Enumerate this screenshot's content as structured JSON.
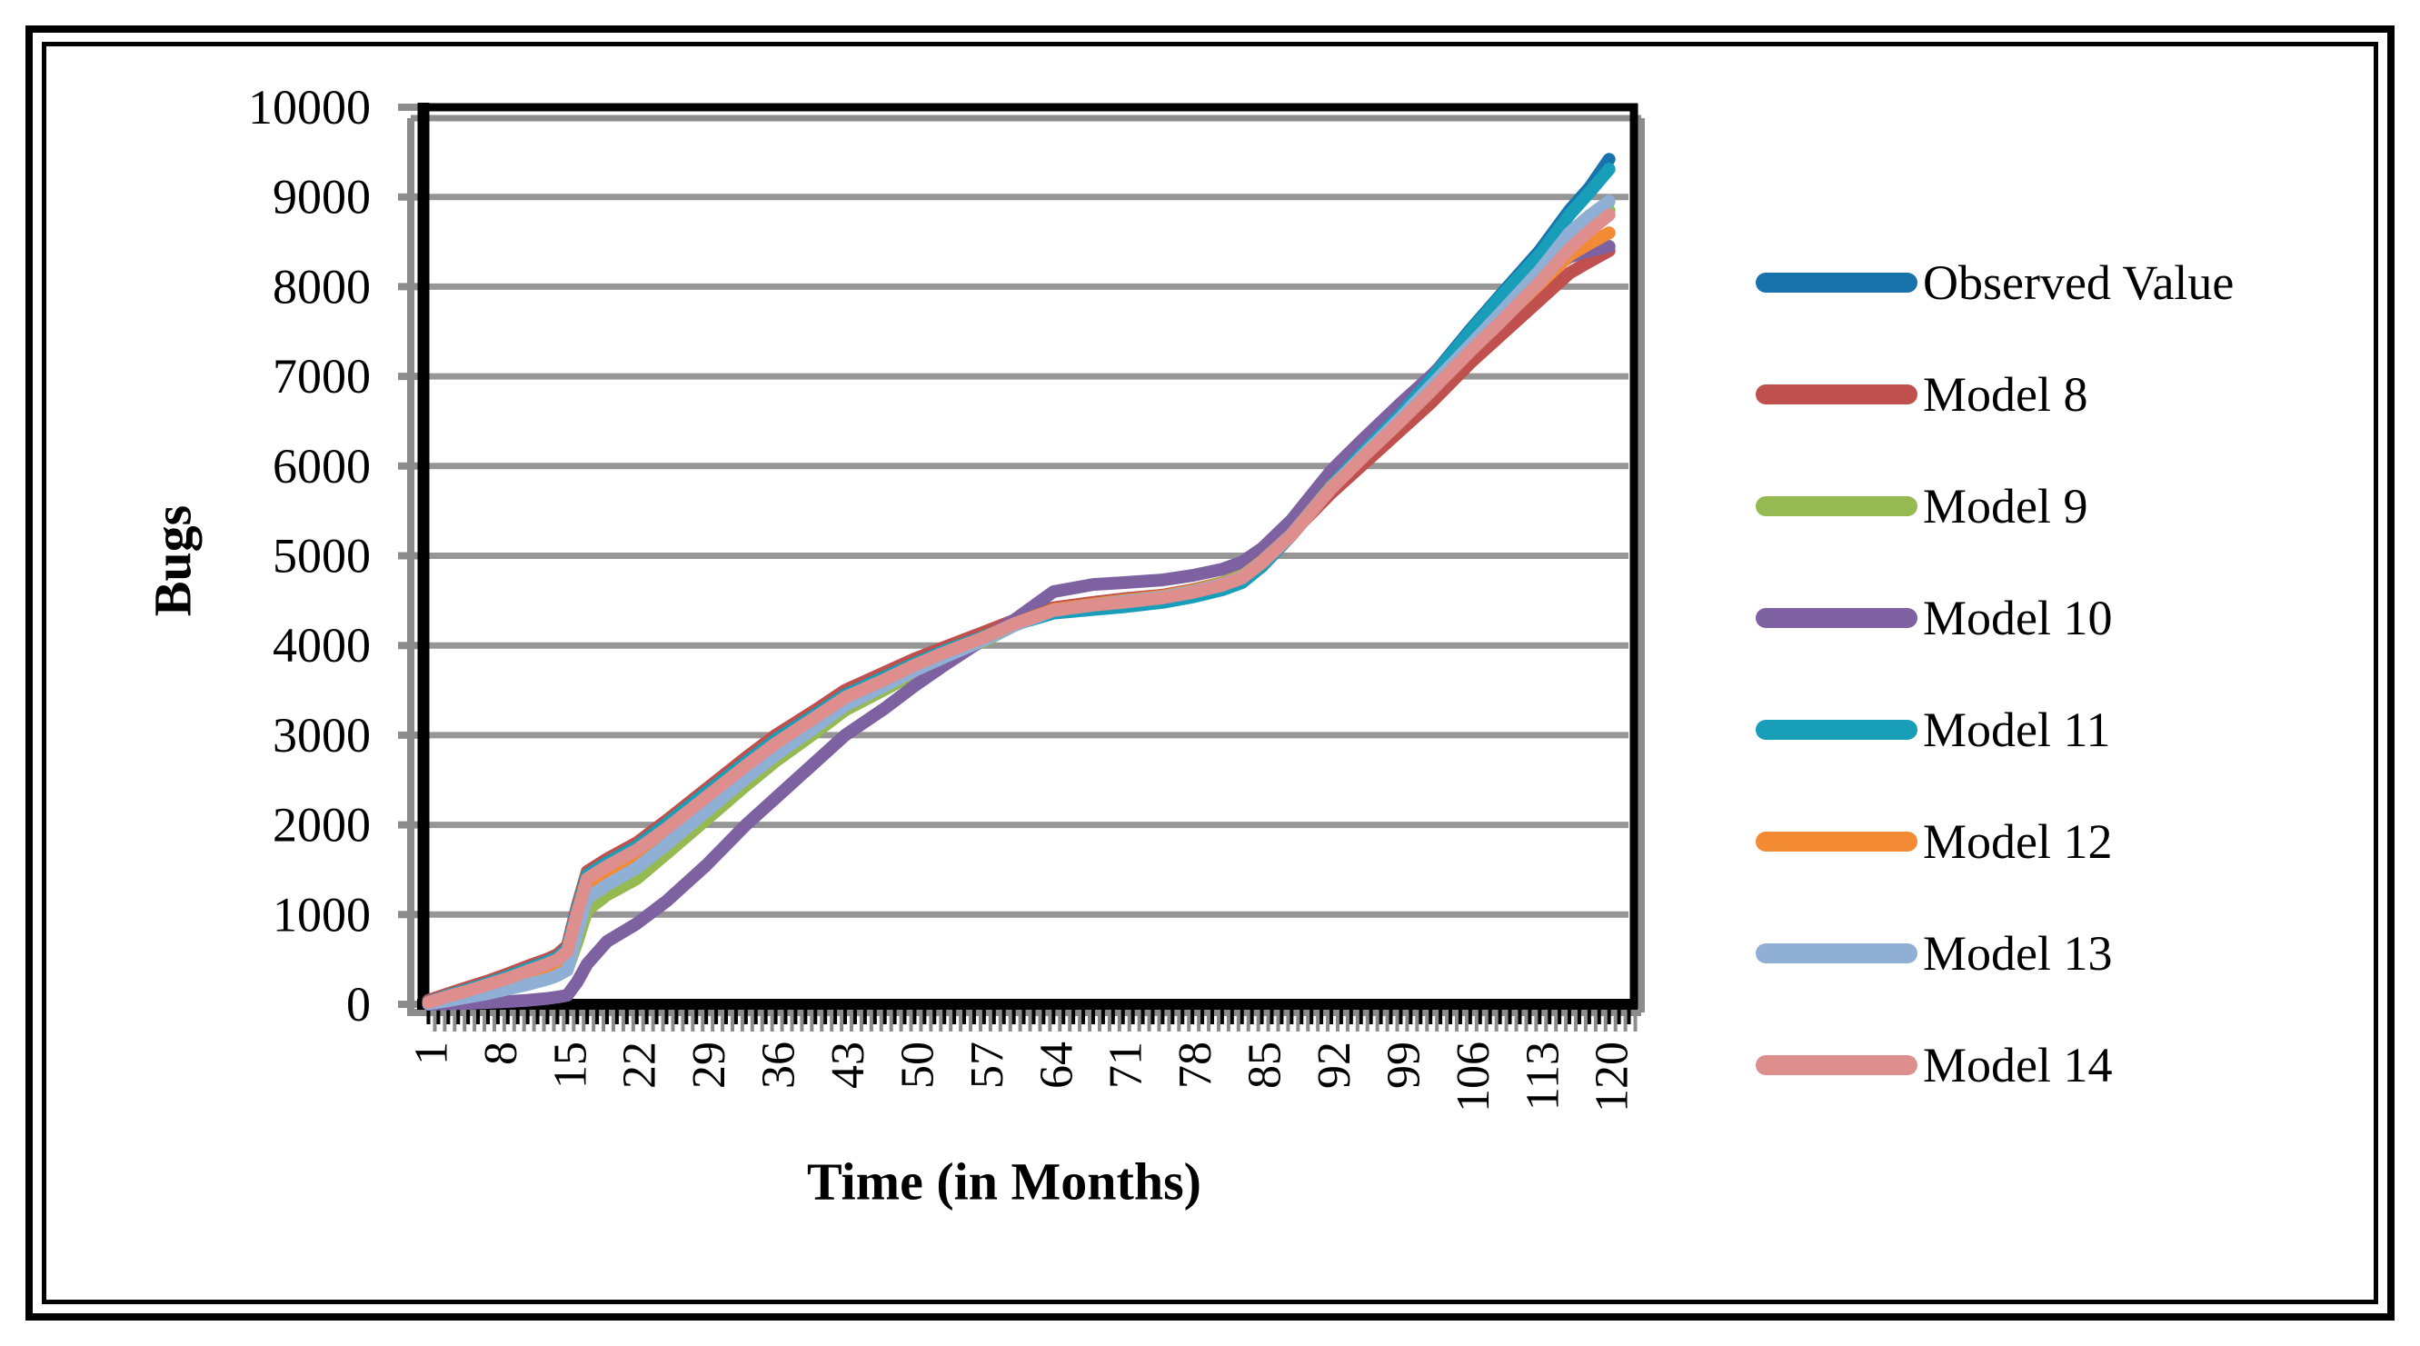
{
  "figure": {
    "y_axis_title": "Bugs",
    "x_axis_title": "Time (in Months)"
  },
  "axes": {
    "y_ticks": [
      0,
      1000,
      2000,
      3000,
      4000,
      5000,
      6000,
      7000,
      8000,
      9000,
      10000
    ],
    "x_ticks": [
      1,
      8,
      15,
      22,
      29,
      36,
      43,
      50,
      57,
      64,
      71,
      78,
      85,
      92,
      99,
      106,
      113,
      120
    ],
    "x_minor_tick_start": 1,
    "x_minor_tick_end": 122,
    "grid_color": "#969696",
    "shadow_color": "#8C8C8C",
    "axis_color": "#000000"
  },
  "chart_data": {
    "type": "line",
    "title": "",
    "xlabel": "Time (in Months)",
    "ylabel": "Bugs",
    "xlim": [
      0.5,
      122.5
    ],
    "ylim": [
      0,
      10000
    ],
    "grid": "horizontal",
    "legend_position": "right",
    "x": [
      1,
      3,
      5,
      7,
      9,
      11,
      13,
      14,
      15,
      16,
      17,
      19,
      22,
      25,
      29,
      33,
      36,
      40,
      43,
      47,
      50,
      53,
      57,
      60,
      64,
      68,
      71,
      75,
      78,
      81,
      83,
      85,
      88,
      92,
      95,
      99,
      102,
      106,
      109,
      113,
      116,
      118,
      120
    ],
    "series": [
      {
        "name": "Observed Value",
        "color": "#1873AC",
        "values": [
          30,
          105,
          170,
          240,
          315,
          400,
          480,
          530,
          625,
          1065,
          1445,
          1585,
          1765,
          2015,
          2365,
          2705,
          2955,
          3235,
          3455,
          3655,
          3805,
          3945,
          4105,
          4235,
          4365,
          4405,
          4435,
          4485,
          4545,
          4625,
          4705,
          4885,
          5235,
          5790,
          6140,
          6600,
          6980,
          7520,
          7900,
          8400,
          8850,
          9100,
          9420
        ]
      },
      {
        "name": "Model 8",
        "color": "#C0504D",
        "values": [
          45,
          120,
          190,
          260,
          340,
          425,
          505,
          555,
          655,
          1100,
          1480,
          1620,
          1800,
          2050,
          2400,
          2750,
          3000,
          3280,
          3500,
          3700,
          3850,
          3980,
          4150,
          4280,
          4420,
          4480,
          4520,
          4560,
          4620,
          4700,
          4780,
          4950,
          5250,
          5700,
          6000,
          6400,
          6700,
          7150,
          7450,
          7850,
          8150,
          8280,
          8400
        ]
      },
      {
        "name": "Model 9",
        "color": "#94BA51",
        "values": [
          15,
          50,
          90,
          130,
          180,
          230,
          290,
          330,
          390,
          700,
          1050,
          1220,
          1400,
          1680,
          2060,
          2440,
          2710,
          3030,
          3280,
          3510,
          3690,
          3850,
          4050,
          4220,
          4400,
          4460,
          4500,
          4550,
          4610,
          4700,
          4790,
          4960,
          5280,
          5820,
          6150,
          6580,
          6910,
          7360,
          7680,
          8120,
          8500,
          8680,
          8850
        ]
      },
      {
        "name": "Model 10",
        "color": "#7E61A1",
        "values": [
          0,
          5,
          10,
          20,
          30,
          45,
          65,
          80,
          100,
          250,
          450,
          700,
          900,
          1150,
          1550,
          2000,
          2300,
          2700,
          3000,
          3300,
          3550,
          3780,
          4070,
          4280,
          4600,
          4680,
          4700,
          4730,
          4780,
          4850,
          4930,
          5080,
          5400,
          5950,
          6280,
          6700,
          7000,
          7450,
          7700,
          8100,
          8330,
          8400,
          8450
        ]
      },
      {
        "name": "Model 11",
        "color": "#189EB8",
        "values": [
          25,
          100,
          165,
          235,
          310,
          395,
          475,
          525,
          620,
          1060,
          1440,
          1580,
          1760,
          2010,
          2360,
          2700,
          2950,
          3230,
          3450,
          3650,
          3800,
          3940,
          4100,
          4230,
          4360,
          4400,
          4430,
          4480,
          4540,
          4620,
          4700,
          4880,
          5230,
          5780,
          6130,
          6580,
          6960,
          7500,
          7880,
          8360,
          8800,
          9050,
          9310
        ]
      },
      {
        "name": "Model 12",
        "color": "#F28B33",
        "values": [
          10,
          60,
          110,
          160,
          220,
          280,
          350,
          390,
          470,
          900,
          1280,
          1430,
          1620,
          1870,
          2230,
          2590,
          2850,
          3150,
          3380,
          3590,
          3750,
          3900,
          4080,
          4240,
          4400,
          4460,
          4500,
          4550,
          4610,
          4690,
          4770,
          4940,
          5240,
          5770,
          6090,
          6510,
          6840,
          7290,
          7610,
          8030,
          8350,
          8480,
          8600
        ]
      },
      {
        "name": "Model 13",
        "color": "#90AFD5",
        "values": [
          5,
          40,
          80,
          120,
          170,
          220,
          280,
          320,
          380,
          800,
          1180,
          1330,
          1520,
          1780,
          2150,
          2520,
          2780,
          3090,
          3330,
          3550,
          3720,
          3870,
          4060,
          4220,
          4390,
          4450,
          4490,
          4540,
          4600,
          4680,
          4760,
          4930,
          5240,
          5760,
          6100,
          6540,
          6890,
          7350,
          7700,
          8180,
          8600,
          8790,
          8950
        ]
      },
      {
        "name": "Model 14",
        "color": "#DD8E8D",
        "values": [
          20,
          90,
          150,
          220,
          290,
          370,
          450,
          500,
          590,
          1020,
          1400,
          1540,
          1720,
          1960,
          2310,
          2660,
          2910,
          3200,
          3420,
          3620,
          3780,
          3920,
          4090,
          4240,
          4390,
          4450,
          4480,
          4530,
          4590,
          4670,
          4750,
          4920,
          5230,
          5750,
          6080,
          6500,
          6830,
          7280,
          7600,
          8050,
          8420,
          8620,
          8800
        ]
      }
    ]
  }
}
